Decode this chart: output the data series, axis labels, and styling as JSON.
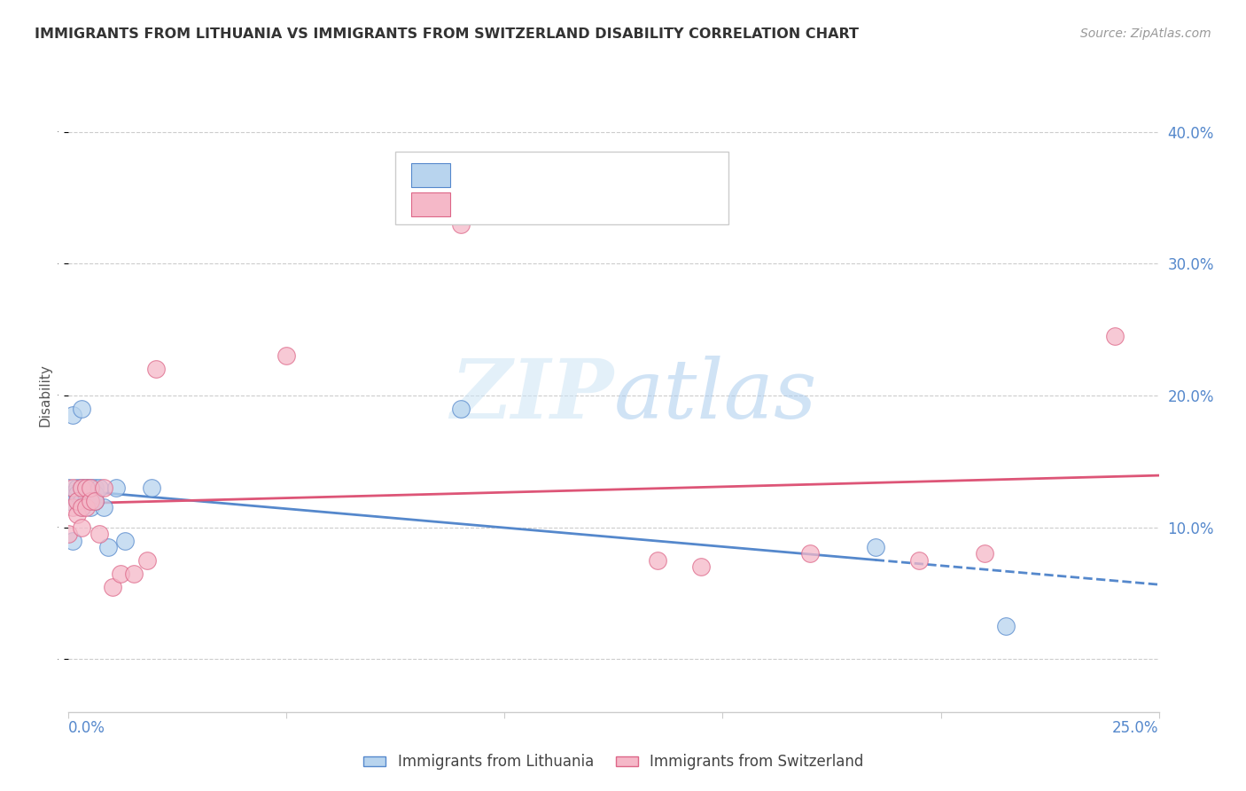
{
  "title": "IMMIGRANTS FROM LITHUANIA VS IMMIGRANTS FROM SWITZERLAND DISABILITY CORRELATION CHART",
  "source": "Source: ZipAtlas.com",
  "ylabel": "Disability",
  "watermark": "ZIPatlas",
  "xlim": [
    0.0,
    0.25
  ],
  "ylim": [
    -0.04,
    0.44
  ],
  "yticks": [
    0.0,
    0.1,
    0.2,
    0.3,
    0.4
  ],
  "ytick_labels": [
    "",
    "10.0%",
    "20.0%",
    "30.0%",
    "40.0%"
  ],
  "blue_face": "#b8d4ee",
  "blue_edge": "#5588cc",
  "pink_face": "#f5b8c8",
  "pink_edge": "#dd6688",
  "blue_line_color": "#5588cc",
  "pink_line_color": "#dd5577",
  "right_label_color": "#5588cc",
  "axis_color": "#cccccc",
  "watermark_color": "#cce4f5",
  "blue_x": [
    0.0,
    0.0,
    0.001,
    0.001,
    0.001,
    0.002,
    0.002,
    0.002,
    0.003,
    0.003,
    0.003,
    0.004,
    0.004,
    0.004,
    0.005,
    0.005,
    0.005,
    0.006,
    0.006,
    0.007,
    0.008,
    0.009,
    0.011,
    0.013,
    0.019,
    0.09,
    0.185,
    0.215
  ],
  "blue_y": [
    0.12,
    0.13,
    0.09,
    0.125,
    0.185,
    0.12,
    0.13,
    0.125,
    0.12,
    0.13,
    0.19,
    0.125,
    0.13,
    0.12,
    0.13,
    0.12,
    0.115,
    0.13,
    0.125,
    0.13,
    0.115,
    0.085,
    0.13,
    0.09,
    0.13,
    0.19,
    0.085,
    0.025
  ],
  "pink_x": [
    0.0,
    0.001,
    0.001,
    0.002,
    0.002,
    0.003,
    0.003,
    0.004,
    0.004,
    0.005,
    0.005,
    0.006,
    0.007,
    0.008,
    0.01,
    0.012,
    0.015,
    0.018,
    0.02,
    0.05,
    0.09,
    0.135,
    0.145,
    0.17,
    0.195,
    0.21,
    0.24
  ],
  "pink_y": [
    0.095,
    0.115,
    0.13,
    0.11,
    0.12,
    0.115,
    0.13,
    0.115,
    0.13,
    0.12,
    0.13,
    0.12,
    0.095,
    0.13,
    0.055,
    0.065,
    0.065,
    0.075,
    0.22,
    0.23,
    0.33,
    0.075,
    0.07,
    0.08,
    0.075,
    0.08,
    0.245
  ]
}
